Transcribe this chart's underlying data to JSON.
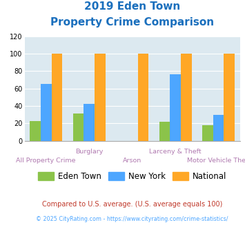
{
  "title_line1": "2019 Eden Town",
  "title_line2": "Property Crime Comparison",
  "categories": [
    "All Property Crime",
    "Burglary",
    "Arson",
    "Larceny & Theft",
    "Motor Vehicle Theft"
  ],
  "eden_town": [
    23,
    31,
    0,
    22,
    18
  ],
  "new_york": [
    65,
    42,
    0,
    76,
    30
  ],
  "national": [
    100,
    100,
    100,
    100,
    100
  ],
  "color_eden": "#8bc34a",
  "color_ny": "#4da6ff",
  "color_nat": "#ffa726",
  "ylim": [
    0,
    120
  ],
  "yticks": [
    0,
    20,
    40,
    60,
    80,
    100,
    120
  ],
  "bg_color": "#dce9f0",
  "legend_labels": [
    "Eden Town",
    "New York",
    "National"
  ],
  "footer1": "Compared to U.S. average. (U.S. average equals 100)",
  "footer2": "© 2025 CityRating.com - https://www.cityrating.com/crime-statistics/",
  "title_color": "#1a6fbd",
  "footer1_color": "#c0392b",
  "footer2_color": "#4da6ff",
  "xlabel_top_color": "#b07ab0",
  "xlabel_bot_color": "#b07ab0"
}
